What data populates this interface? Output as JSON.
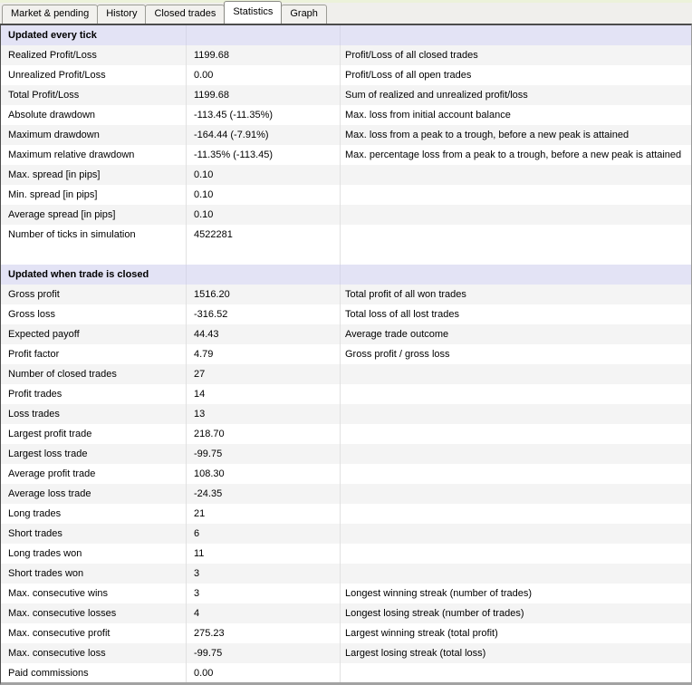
{
  "tabs": [
    {
      "label": "Market & pending",
      "active": false
    },
    {
      "label": "History",
      "active": false
    },
    {
      "label": "Closed trades",
      "active": false
    },
    {
      "label": "Statistics",
      "active": true
    },
    {
      "label": "Graph",
      "active": false
    }
  ],
  "table": {
    "sections": [
      {
        "header": "Updated every tick",
        "rows": [
          {
            "label": "Realized Profit/Loss",
            "value": "1199.68",
            "description": "Profit/Loss of all closed trades"
          },
          {
            "label": "Unrealized Profit/Loss",
            "value": "0.00",
            "description": "Profit/Loss of all open trades"
          },
          {
            "label": "Total Profit/Loss",
            "value": "1199.68",
            "description": "Sum of realized and unrealized profit/loss"
          },
          {
            "label": "Absolute drawdown",
            "value": "-113.45 (-11.35%)",
            "description": "Max. loss from initial account balance"
          },
          {
            "label": "Maximum drawdown",
            "value": "-164.44 (-7.91%)",
            "description": "Max. loss from a peak to a trough, before a new peak is attained"
          },
          {
            "label": "Maximum relative drawdown",
            "value": "-11.35% (-113.45)",
            "description": "Max. percentage loss from a peak to a trough, before a new peak is attained"
          },
          {
            "label": "Max. spread [in pips]",
            "value": "0.10",
            "description": ""
          },
          {
            "label": "Min. spread [in pips]",
            "value": "0.10",
            "description": ""
          },
          {
            "label": "Average spread [in pips]",
            "value": "0.10",
            "description": ""
          },
          {
            "label": "Number of ticks in simulation",
            "value": "4522281",
            "description": ""
          }
        ]
      },
      {
        "header": "Updated when trade is closed",
        "rows": [
          {
            "label": "Gross profit",
            "value": "1516.20",
            "description": "Total profit of all won trades"
          },
          {
            "label": "Gross loss",
            "value": "-316.52",
            "description": "Total loss of all lost trades"
          },
          {
            "label": "Expected payoff",
            "value": "44.43",
            "description": "Average trade outcome"
          },
          {
            "label": "Profit factor",
            "value": "4.79",
            "description": "Gross profit / gross loss"
          },
          {
            "label": "Number of closed trades",
            "value": "27",
            "description": ""
          },
          {
            "label": "Profit trades",
            "value": "14",
            "description": ""
          },
          {
            "label": "Loss trades",
            "value": "13",
            "description": ""
          },
          {
            "label": "Largest profit trade",
            "value": "218.70",
            "description": ""
          },
          {
            "label": "Largest loss trade",
            "value": "-99.75",
            "description": ""
          },
          {
            "label": "Average profit trade",
            "value": "108.30",
            "description": ""
          },
          {
            "label": "Average loss trade",
            "value": "-24.35",
            "description": ""
          },
          {
            "label": "Long trades",
            "value": "21",
            "description": ""
          },
          {
            "label": "Short trades",
            "value": "6",
            "description": ""
          },
          {
            "label": "Long trades won",
            "value": "11",
            "description": ""
          },
          {
            "label": "Short trades won",
            "value": "3",
            "description": ""
          },
          {
            "label": "Max. consecutive wins",
            "value": "3",
            "description": "Longest winning streak (number of trades)"
          },
          {
            "label": "Max. consecutive losses",
            "value": "4",
            "description": "Longest losing streak (number of trades)"
          },
          {
            "label": "Max. consecutive profit",
            "value": "275.23",
            "description": "Largest winning streak (total profit)"
          },
          {
            "label": "Max. consecutive loss",
            "value": "-99.75",
            "description": "Largest losing streak (total loss)"
          },
          {
            "label": "Paid commissions",
            "value": "0.00",
            "description": ""
          }
        ]
      }
    ]
  },
  "colors": {
    "section_header_bg": "#e3e3f5",
    "row_stripe_bg": "#f4f4f4",
    "tabstrip_bg": "#f0efec",
    "tabstrip_top_line": "#ecf2da",
    "table_border_dark": "#4c4c4c",
    "table_border_bottom": "#a2a2a2",
    "column_divider": "#e1e1e1"
  }
}
